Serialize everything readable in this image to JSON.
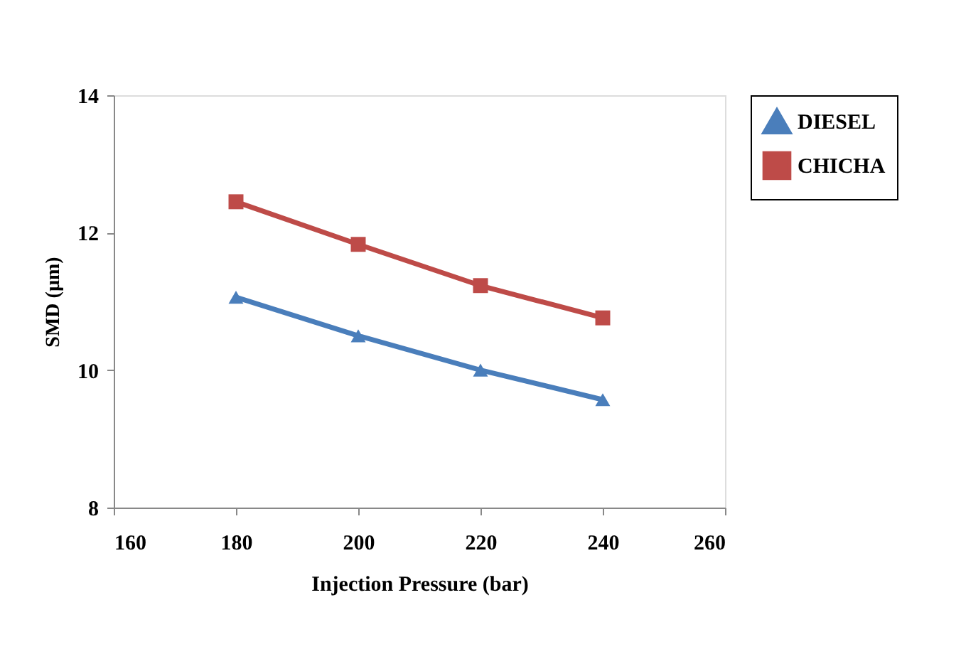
{
  "chart_data": {
    "type": "line",
    "xlabel": "Injection Pressure (bar)",
    "ylabel": "SMD (µm)",
    "x": [
      180,
      200,
      220,
      240
    ],
    "series": [
      {
        "name": "DIESEL",
        "color": "#4a7ebb",
        "marker": "triangle",
        "values": [
          11.06,
          10.5,
          10.0,
          9.57
        ]
      },
      {
        "name": "CHICHA",
        "color": "#be4b48",
        "marker": "square",
        "values": [
          12.45,
          11.83,
          11.23,
          10.76
        ]
      }
    ],
    "xlim": [
      160,
      260
    ],
    "xticks": [
      160,
      180,
      200,
      220,
      240,
      260
    ],
    "ylim": [
      8,
      14
    ],
    "yticks": [
      8,
      10,
      12,
      14
    ],
    "grid": false,
    "legend": "top right",
    "line_style": "solid"
  }
}
